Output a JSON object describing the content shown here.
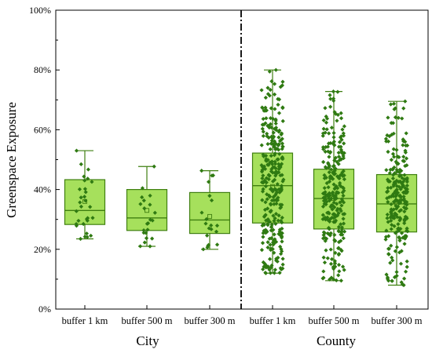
{
  "chart_data": {
    "type": "box",
    "ylabel": "Greenspace Exposure",
    "y_unit": "%",
    "ylim": [
      0,
      100
    ],
    "yticks": [
      "0%",
      "20%",
      "40%",
      "60%",
      "80%",
      "100%"
    ],
    "categories": [
      "buffer 1 km",
      "buffer 500 m",
      "buffer 300 m",
      "buffer 1 km",
      "buffer 500 m",
      "buffer 300 m"
    ],
    "groups": [
      {
        "label": "City",
        "categories": [
          0,
          1,
          2
        ]
      },
      {
        "label": "County",
        "categories": [
          3,
          4,
          5
        ]
      }
    ],
    "divider": "dash-dot line between City and County",
    "box_fill": "#a6e05c",
    "box_stroke": "#3f7f10",
    "point_color": "#2f7a12",
    "boxes": [
      {
        "min": 23.5,
        "q1": 28.3,
        "median": 33.0,
        "mean": 36.0,
        "q3": 43.3,
        "max": 53.0
      },
      {
        "min": 21.0,
        "q1": 26.3,
        "median": 30.5,
        "mean": 33.0,
        "q3": 40.0,
        "max": 47.7
      },
      {
        "min": 20.0,
        "q1": 25.3,
        "median": 29.8,
        "mean": 31.0,
        "q3": 39.0,
        "max": 46.3
      },
      {
        "min": 12.0,
        "q1": 28.8,
        "median": 41.3,
        "mean": 41.0,
        "q3": 52.2,
        "max": 80.0
      },
      {
        "min": 9.5,
        "q1": 26.8,
        "median": 37.0,
        "mean": 37.0,
        "q3": 46.8,
        "max": 72.8
      },
      {
        "min": 8.0,
        "q1": 25.8,
        "median": 35.2,
        "mean": 35.0,
        "q3": 45.0,
        "max": 69.5
      }
    ],
    "points_per_box": [
      30,
      22,
      20,
      300,
      260,
      240
    ]
  }
}
